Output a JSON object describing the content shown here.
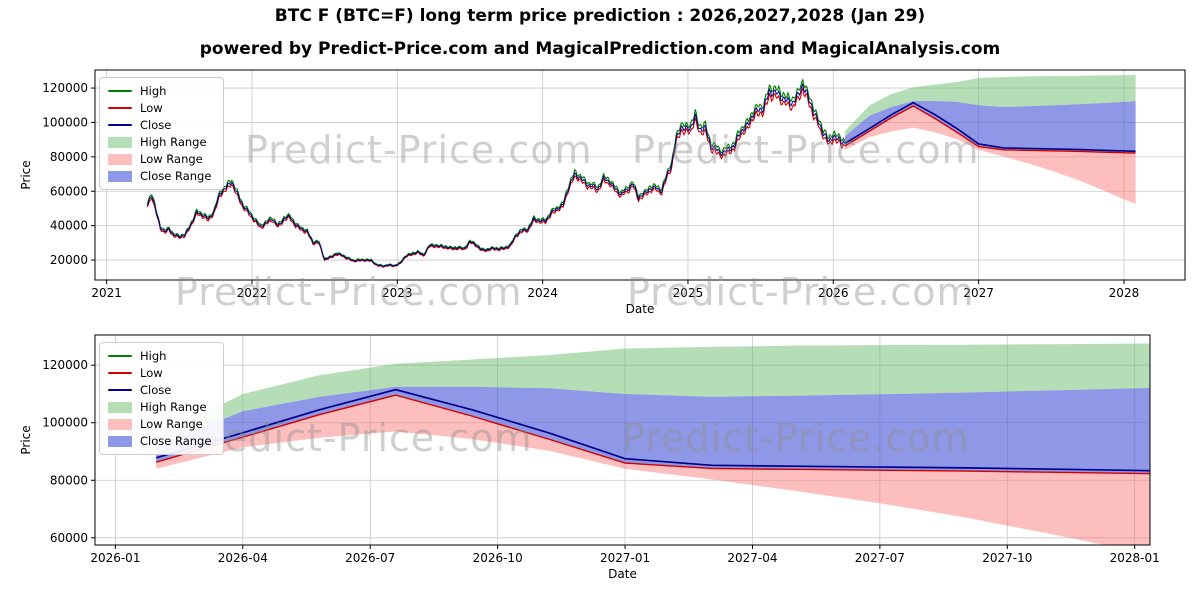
{
  "chart_data": {
    "type": "line",
    "title": "BTC F (BTC=F) long term price prediction : 2026,2027,2028 (Jan 29)",
    "subtitle": "powered by Predict-Price.com and MagicalPrediction.com and MagicalAnalysis.com",
    "watermark": "Predict-Price.com",
    "colors": {
      "high": "#008000",
      "low": "#d40000",
      "close": "#00008b",
      "high_range_fill": "rgba(110,190,110,0.5)",
      "low_range_fill": "rgba(250,110,110,0.45)",
      "close_range_fill": "rgba(75,88,214,0.62)",
      "grid": "#c8c8c8"
    },
    "legend": [
      {
        "label": "High",
        "swatch": "line",
        "color": "#008000"
      },
      {
        "label": "Low",
        "swatch": "line",
        "color": "#d40000"
      },
      {
        "label": "Close",
        "swatch": "line",
        "color": "#00008b"
      },
      {
        "label": "High Range",
        "swatch": "patch",
        "color": "rgba(110,190,110,0.5)"
      },
      {
        "label": "Low Range",
        "swatch": "patch",
        "color": "rgba(250,110,110,0.45)"
      },
      {
        "label": "Close Range",
        "swatch": "patch",
        "color": "rgba(75,88,214,0.62)"
      }
    ],
    "top_chart": {
      "name": "top-chart",
      "xlabel": "Date",
      "ylabel": "Price",
      "xlim": [
        2020.92,
        2028.42
      ],
      "ylim": [
        8400,
        130500
      ],
      "xticks": [
        {
          "v": 2021,
          "label": "2021"
        },
        {
          "v": 2022,
          "label": "2022"
        },
        {
          "v": 2023,
          "label": "2023"
        },
        {
          "v": 2024,
          "label": "2024"
        },
        {
          "v": 2025,
          "label": "2025"
        },
        {
          "v": 2026,
          "label": "2026"
        },
        {
          "v": 2027,
          "label": "2027"
        },
        {
          "v": 2028,
          "label": "2028"
        }
      ],
      "yticks": [
        {
          "v": 20000,
          "label": "20000"
        },
        {
          "v": 40000,
          "label": "40000"
        },
        {
          "v": 60000,
          "label": "60000"
        },
        {
          "v": 80000,
          "label": "80000"
        },
        {
          "v": 100000,
          "label": "100000"
        },
        {
          "v": 120000,
          "label": "120000"
        }
      ]
    },
    "bottom_chart": {
      "name": "bottom-chart",
      "xlabel": "Date",
      "ylabel": "Price",
      "xlim": [
        2025.96,
        2028.03
      ],
      "ylim": [
        57500,
        130500
      ],
      "xticks": [
        {
          "v": 2026.0,
          "label": "2026-01"
        },
        {
          "v": 2026.25,
          "label": "2026-04"
        },
        {
          "v": 2026.5,
          "label": "2026-07"
        },
        {
          "v": 2026.75,
          "label": "2026-10"
        },
        {
          "v": 2027.0,
          "label": "2027-01"
        },
        {
          "v": 2027.25,
          "label": "2027-04"
        },
        {
          "v": 2027.5,
          "label": "2027-07"
        },
        {
          "v": 2027.75,
          "label": "2027-10"
        },
        {
          "v": 2028.0,
          "label": "2028-01"
        }
      ],
      "yticks": [
        {
          "v": 60000,
          "label": "60000"
        },
        {
          "v": 80000,
          "label": "80000"
        },
        {
          "v": 100000,
          "label": "100000"
        },
        {
          "v": 120000,
          "label": "120000"
        }
      ]
    },
    "historical": {
      "description": "BTC=F close keypoints [decimal_year, price]; noisy daily high/low/close drawn around these",
      "close_keypoints": [
        [
          2021.28,
          52500
        ],
        [
          2021.31,
          58000
        ],
        [
          2021.34,
          48000
        ],
        [
          2021.37,
          39000
        ],
        [
          2021.4,
          36500
        ],
        [
          2021.43,
          38500
        ],
        [
          2021.46,
          34500
        ],
        [
          2021.5,
          33500
        ],
        [
          2021.54,
          34500
        ],
        [
          2021.58,
          41000
        ],
        [
          2021.62,
          47500
        ],
        [
          2021.66,
          46000
        ],
        [
          2021.7,
          44000
        ],
        [
          2021.74,
          48500
        ],
        [
          2021.78,
          58500
        ],
        [
          2021.82,
          61500
        ],
        [
          2021.86,
          66000
        ],
        [
          2021.9,
          58500
        ],
        [
          2021.94,
          51000
        ],
        [
          2021.98,
          47500
        ],
        [
          2022.02,
          43500
        ],
        [
          2022.06,
          39500
        ],
        [
          2022.1,
          41500
        ],
        [
          2022.14,
          44000
        ],
        [
          2022.18,
          40000
        ],
        [
          2022.22,
          44000
        ],
        [
          2022.26,
          45000
        ],
        [
          2022.3,
          40500
        ],
        [
          2022.34,
          38500
        ],
        [
          2022.38,
          36500
        ],
        [
          2022.42,
          30000
        ],
        [
          2022.46,
          30500
        ],
        [
          2022.5,
          20500
        ],
        [
          2022.54,
          21500
        ],
        [
          2022.58,
          23500
        ],
        [
          2022.62,
          23000
        ],
        [
          2022.66,
          21000
        ],
        [
          2022.7,
          19500
        ],
        [
          2022.74,
          19800
        ],
        [
          2022.78,
          20200
        ],
        [
          2022.82,
          19800
        ],
        [
          2022.86,
          17000
        ],
        [
          2022.9,
          16400
        ],
        [
          2022.94,
          17200
        ],
        [
          2022.98,
          16700
        ],
        [
          2023.02,
          18000
        ],
        [
          2023.06,
          22500
        ],
        [
          2023.1,
          23500
        ],
        [
          2023.14,
          24800
        ],
        [
          2023.18,
          22500
        ],
        [
          2023.22,
          28300
        ],
        [
          2023.26,
          28600
        ],
        [
          2023.3,
          27800
        ],
        [
          2023.34,
          27300
        ],
        [
          2023.38,
          26800
        ],
        [
          2023.42,
          27400
        ],
        [
          2023.46,
          26300
        ],
        [
          2023.5,
          30500
        ],
        [
          2023.54,
          29200
        ],
        [
          2023.58,
          26000
        ],
        [
          2023.62,
          25800
        ],
        [
          2023.66,
          26700
        ],
        [
          2023.7,
          26600
        ],
        [
          2023.74,
          27000
        ],
        [
          2023.78,
          28500
        ],
        [
          2023.82,
          34700
        ],
        [
          2023.86,
          37400
        ],
        [
          2023.9,
          37800
        ],
        [
          2023.94,
          43500
        ],
        [
          2023.98,
          42800
        ],
        [
          2024.02,
          43000
        ],
        [
          2024.06,
          47500
        ],
        [
          2024.1,
          49500
        ],
        [
          2024.14,
          52000
        ],
        [
          2024.18,
          63000
        ],
        [
          2024.22,
          69500
        ],
        [
          2024.26,
          67500
        ],
        [
          2024.3,
          64500
        ],
        [
          2024.34,
          63500
        ],
        [
          2024.38,
          61000
        ],
        [
          2024.42,
          67000
        ],
        [
          2024.46,
          66000
        ],
        [
          2024.5,
          61500
        ],
        [
          2024.54,
          58000
        ],
        [
          2024.58,
          60500
        ],
        [
          2024.62,
          64800
        ],
        [
          2024.66,
          56500
        ],
        [
          2024.7,
          58000
        ],
        [
          2024.74,
          61500
        ],
        [
          2024.78,
          62500
        ],
        [
          2024.82,
          60000
        ],
        [
          2024.86,
          70000
        ],
        [
          2024.89,
          76000
        ],
        [
          2024.92,
          91000
        ],
        [
          2024.95,
          98000
        ],
        [
          2024.98,
          95500
        ],
        [
          2025.02,
          96800
        ],
        [
          2025.05,
          103000
        ],
        [
          2025.08,
          97000
        ],
        [
          2025.12,
          96500
        ],
        [
          2025.16,
          85500
        ],
        [
          2025.2,
          84000
        ],
        [
          2025.24,
          82500
        ],
        [
          2025.28,
          84500
        ],
        [
          2025.32,
          85500
        ],
        [
          2025.36,
          95000
        ],
        [
          2025.4,
          97500
        ],
        [
          2025.44,
          103500
        ],
        [
          2025.48,
          106500
        ],
        [
          2025.52,
          108500
        ],
        [
          2025.56,
          118500
        ],
        [
          2025.6,
          117000
        ],
        [
          2025.64,
          114500
        ],
        [
          2025.68,
          113000
        ],
        [
          2025.72,
          112000
        ],
        [
          2025.76,
          115000
        ],
        [
          2025.79,
          121500
        ],
        [
          2025.82,
          116000
        ],
        [
          2025.85,
          110500
        ],
        [
          2025.88,
          103500
        ],
        [
          2025.91,
          97000
        ],
        [
          2025.94,
          92500
        ],
        [
          2025.97,
          88500
        ],
        [
          2026.0,
          93000
        ],
        [
          2026.03,
          90500
        ],
        [
          2026.06,
          88500
        ],
        [
          2026.08,
          87800
        ]
      ]
    },
    "prediction": {
      "x": [
        2026.08,
        2026.25,
        2026.4,
        2026.55,
        2026.7,
        2026.85,
        2027.0,
        2027.17,
        2027.33,
        2027.5,
        2027.67,
        2027.83,
        2028.08
      ],
      "close": [
        87800,
        96500,
        104500,
        111500,
        104500,
        96500,
        87500,
        85200,
        84900,
        84600,
        84300,
        83900,
        83200
      ],
      "low": [
        86300,
        95000,
        102800,
        109600,
        102300,
        94300,
        86000,
        84100,
        83800,
        83500,
        83200,
        82800,
        82200
      ],
      "high_range_top": [
        95000,
        110000,
        116500,
        120500,
        122000,
        123500,
        125800,
        126400,
        126800,
        127000,
        127100,
        127300,
        127600
      ],
      "close_range_top": [
        92000,
        104000,
        109000,
        112500,
        112500,
        112000,
        110000,
        109000,
        109400,
        109900,
        110500,
        111200,
        112300
      ],
      "low_range_bottom": [
        84000,
        91500,
        94800,
        97000,
        94300,
        90300,
        84000,
        80300,
        76400,
        72000,
        67000,
        61500,
        52500
      ]
    }
  }
}
